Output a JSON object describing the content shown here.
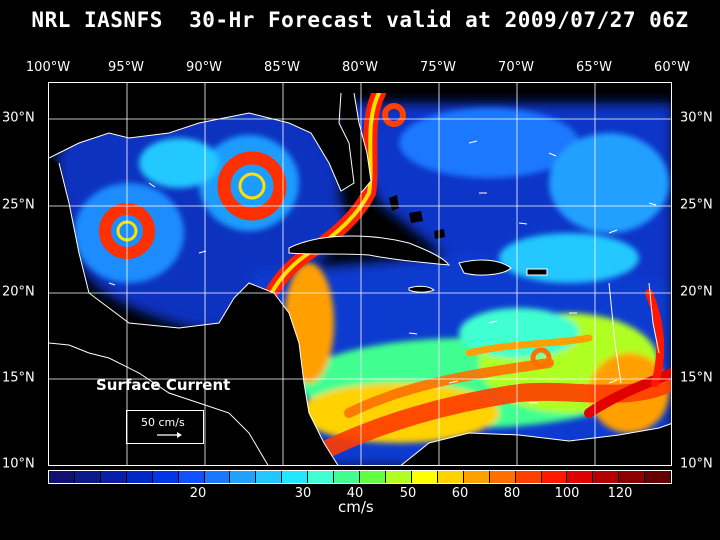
{
  "title": "NRL IASNFS  30-Hr Forecast valid at 2009/07/27 06Z",
  "lon_labels": [
    "100°W",
    "95°W",
    "90°W",
    "85°W",
    "80°W",
    "75°W",
    "70°W",
    "65°W",
    "60°W"
  ],
  "lat_labels": [
    "30°N",
    "25°N",
    "20°N",
    "15°N",
    "10°N"
  ],
  "map": {
    "legend_label": "Surface Current",
    "reference_vector": "50 cm/s"
  },
  "colorbar": {
    "colors": [
      "#101070",
      "#0a1a8c",
      "#0a1ea8",
      "#0028c8",
      "#0036e6",
      "#1050ff",
      "#1a78ff",
      "#20a0ff",
      "#20c8ff",
      "#20e6ff",
      "#40ffd0",
      "#40ff90",
      "#60ff40",
      "#b0ff20",
      "#ffff00",
      "#ffd200",
      "#ffa000",
      "#ff7000",
      "#ff4000",
      "#ff1800",
      "#e00000",
      "#b40000",
      "#8c0000",
      "#640000"
    ],
    "tick_labels": [
      "20",
      "30",
      "40",
      "50",
      "60",
      "80",
      "100",
      "120"
    ],
    "units": "cm/s"
  }
}
